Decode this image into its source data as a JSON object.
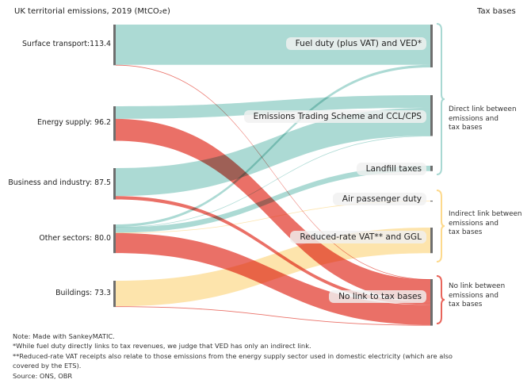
{
  "header": {
    "left_title": "UK territorial emissions, 2019 (MtCO₂e)",
    "right_title": "Tax bases"
  },
  "colors": {
    "direct": "#a8d8d2",
    "indirect": "#fde3a8",
    "none": "#e8645a",
    "node_bar": "#6e6e6e",
    "brace_direct": "#a8d8d2",
    "brace_indirect": "#fdd98c",
    "brace_none": "#e8645a"
  },
  "chart_data": {
    "type": "sankey",
    "title": "UK territorial emissions, 2019 (MtCO2e)",
    "source_header": "UK territorial emissions, 2019 (MtCO₂e)",
    "target_header": "Tax bases",
    "sources": [
      {
        "id": "surface",
        "name": "Surface transport",
        "value": 113.4,
        "label": "Surface transport:113.4"
      },
      {
        "id": "energy",
        "name": "Energy supply",
        "value": 96.2,
        "label": "Energy supply: 96.2"
      },
      {
        "id": "business",
        "name": "Business and industry",
        "value": 87.5,
        "label": "Business and industry: 87.5"
      },
      {
        "id": "other",
        "name": "Other sectors",
        "value": 80.0,
        "label": "Other sectors: 80.0"
      },
      {
        "id": "buildings",
        "name": "Buildings",
        "value": 73.3,
        "label": "Buildings: 73.3"
      }
    ],
    "targets": [
      {
        "id": "fuel",
        "name": "Fuel duty (plus VAT) and VED*",
        "group": "direct"
      },
      {
        "id": "ets",
        "name": "Emissions Trading Scheme and CCL/CPS",
        "group": "direct"
      },
      {
        "id": "landfill",
        "name": "Landfill taxes",
        "group": "direct"
      },
      {
        "id": "apd",
        "name": "Air passenger duty",
        "group": "indirect"
      },
      {
        "id": "vat",
        "name": "Reduced-rate VAT** and GGL",
        "group": "indirect"
      },
      {
        "id": "nolink",
        "name": "No link to tax bases",
        "group": "none"
      }
    ],
    "flows": [
      {
        "source": "surface",
        "target": "fuel",
        "value": 112.4,
        "group": "direct"
      },
      {
        "source": "surface",
        "target": "nolink",
        "value": 1.0,
        "group": "none"
      },
      {
        "source": "energy",
        "target": "ets",
        "value": 35.0,
        "group": "direct"
      },
      {
        "source": "energy",
        "target": "nolink",
        "value": 61.2,
        "group": "none"
      },
      {
        "source": "business",
        "target": "ets",
        "value": 78.0,
        "group": "direct"
      },
      {
        "source": "business",
        "target": "nolink",
        "value": 9.5,
        "group": "none"
      },
      {
        "source": "other",
        "target": "fuel",
        "value": 7.0,
        "group": "direct"
      },
      {
        "source": "other",
        "target": "ets",
        "value": 1.0,
        "group": "direct"
      },
      {
        "source": "other",
        "target": "landfill",
        "value": 15.0,
        "group": "direct"
      },
      {
        "source": "other",
        "target": "apd",
        "value": 1.0,
        "group": "indirect"
      },
      {
        "source": "other",
        "target": "nolink",
        "value": 56.0,
        "group": "none"
      },
      {
        "source": "buildings",
        "target": "vat",
        "value": 71.3,
        "group": "indirect"
      },
      {
        "source": "buildings",
        "target": "nolink",
        "value": 2.0,
        "group": "none"
      }
    ],
    "groups": [
      {
        "id": "direct",
        "label": "Direct link between emissions and tax bases",
        "lines": [
          "Direct link between",
          "emissions and",
          "tax bases"
        ]
      },
      {
        "id": "indirect",
        "label": "Indirect link between emissions and tax bases",
        "lines": [
          "Indirect link between",
          "emissions and",
          "tax bases"
        ]
      },
      {
        "id": "none",
        "label": "No link between emissions and tax bases",
        "lines": [
          "No link between",
          "emissions and",
          "tax bases"
        ]
      }
    ]
  },
  "notes": [
    "Note: Made with SankeyMATIC.",
    "*While fuel duty directly links to tax revenues, we judge that VED has only an indirect link.",
    "**Reduced-rate VAT receipts also relate to those emissions from the energy supply sector used in domestic electricity (which are also",
    "covered by the ETS).",
    "Source: ONS, OBR"
  ]
}
